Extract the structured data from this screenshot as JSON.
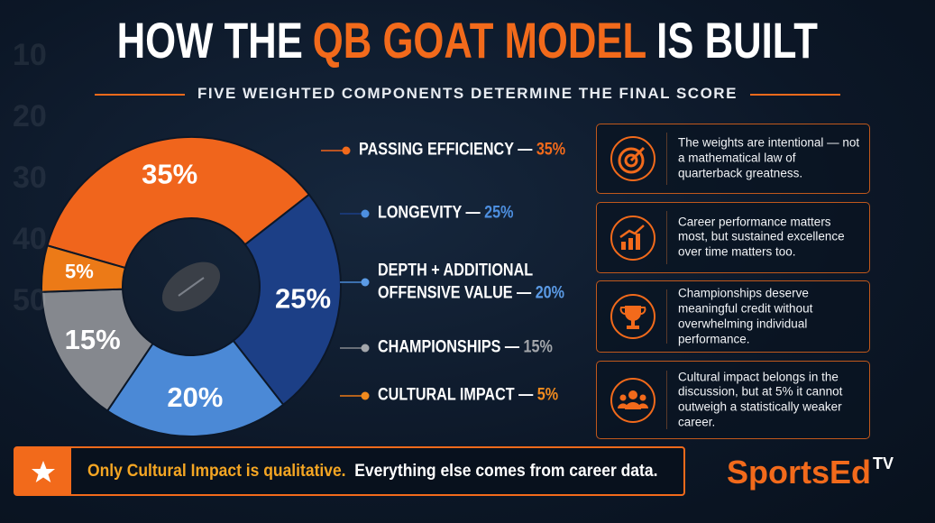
{
  "header": {
    "title": [
      "HOW THE",
      "QB GOAT MODEL",
      "IS BUILT"
    ],
    "subtitle": "FIVE WEIGHTED COMPONENTS DETERMINE THE FINAL SCORE"
  },
  "background": {
    "yard_numbers": [
      "10",
      "20",
      "30",
      "40",
      "50"
    ]
  },
  "chart_data": {
    "type": "pie",
    "donut": true,
    "categories": [
      "PASSING EFFICIENCY",
      "LONGEVITY",
      "DEPTH + ADDITIONAL OFFENSIVE VALUE",
      "CHAMPIONSHIPS",
      "CULTURAL IMPACT"
    ],
    "values": [
      35,
      25,
      20,
      15,
      5
    ],
    "value_labels": [
      "35%",
      "25%",
      "20%",
      "15%",
      "5%"
    ],
    "colors": [
      "#f0651c",
      "#1c3f86",
      "#4b89d6",
      "#85888e",
      "#ec7a17"
    ],
    "label_colors": [
      "#f26a1b",
      "#4d8fe0",
      "#5b9be6",
      "#a3a6ab",
      "#f08a1e"
    ],
    "separator": "—"
  },
  "notes": [
    "The weights are intentional — not a mathematical law of quarterback greatness.",
    "Career performance matters most, but sustained excellence over time matters too.",
    "Championships deserve meaningful credit without overwhelming individual performance.",
    "Cultural impact belongs in the discussion, but at 5% it cannot outweigh a statistically weaker career."
  ],
  "footer": {
    "highlight": "Only Cultural Impact is qualitative.",
    "text": "Everything else comes from career data."
  },
  "logo": {
    "name": "SportsEd",
    "sup": "TV"
  }
}
